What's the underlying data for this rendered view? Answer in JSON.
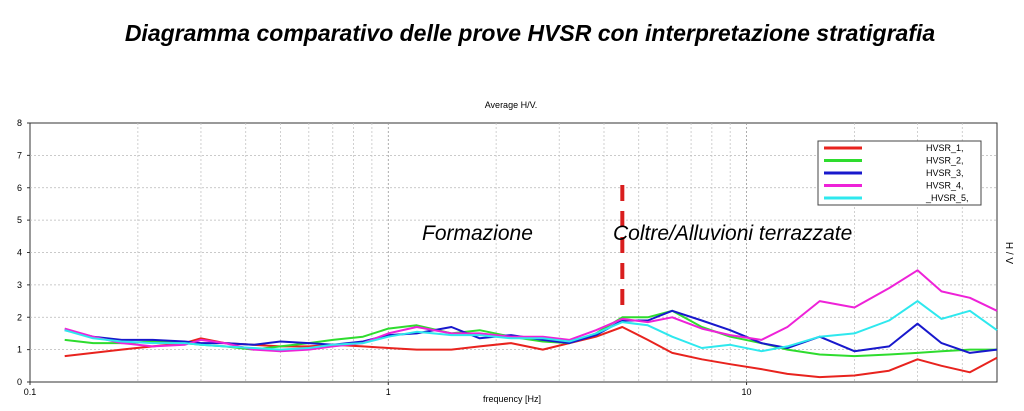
{
  "document_title": "Diagramma comparativo delle prove HVSR con interpretazione stratigrafia",
  "chart_data": {
    "type": "line",
    "title": "Average H/V.",
    "xlabel": "frequency [Hz]",
    "ylabel": "H / V",
    "xscale": "log",
    "xlim": [
      0.1,
      50
    ],
    "ylim": [
      0,
      8
    ],
    "xticks": [
      0.1,
      1,
      10
    ],
    "xtick_labels": [
      "0.1",
      "1",
      "10"
    ],
    "yticks": [
      0,
      1,
      2,
      3,
      4,
      5,
      6,
      7,
      8
    ],
    "ytick_labels": [
      "0",
      "1",
      "2",
      "3",
      "4",
      "5",
      "6",
      "7",
      "8"
    ],
    "grid": true,
    "legend_position": "top-right",
    "annotations": [
      {
        "text": "Formazione"
      },
      {
        "text": "Coltre/Alluvioni terrazzate"
      }
    ],
    "divider_frequency": 4.5,
    "divider_color": "#d91e1e",
    "x": [
      0.125,
      0.15,
      0.18,
      0.22,
      0.27,
      0.3,
      0.35,
      0.42,
      0.5,
      0.6,
      0.7,
      0.85,
      1.0,
      1.2,
      1.5,
      1.8,
      2.2,
      2.7,
      3.2,
      3.8,
      4.5,
      5.3,
      6.2,
      7.5,
      9.0,
      11,
      13,
      16,
      20,
      25,
      30,
      35,
      42,
      50
    ],
    "series": [
      {
        "name": "HVSR_1,",
        "color": "#e8231e",
        "values": [
          0.8,
          0.9,
          1.0,
          1.1,
          1.2,
          1.35,
          1.2,
          1.15,
          1.1,
          1.1,
          1.15,
          1.1,
          1.05,
          1.0,
          1.0,
          1.1,
          1.2,
          1.0,
          1.2,
          1.4,
          1.7,
          1.3,
          0.9,
          0.7,
          0.55,
          0.4,
          0.25,
          0.15,
          0.2,
          0.35,
          0.7,
          0.5,
          0.3,
          0.75
        ]
      },
      {
        "name": "HVSR_2,",
        "color": "#2edc2e",
        "values": [
          1.3,
          1.2,
          1.2,
          1.25,
          1.2,
          1.15,
          1.1,
          1.0,
          1.1,
          1.2,
          1.3,
          1.4,
          1.65,
          1.75,
          1.5,
          1.6,
          1.4,
          1.25,
          1.2,
          1.5,
          2.0,
          2.0,
          2.2,
          1.7,
          1.4,
          1.2,
          1.0,
          0.85,
          0.8,
          0.85,
          0.9,
          0.95,
          1.0,
          1.0
        ]
      },
      {
        "name": "HVSR_3,",
        "color": "#1818cc",
        "values": [
          1.6,
          1.4,
          1.3,
          1.3,
          1.25,
          1.2,
          1.2,
          1.15,
          1.25,
          1.2,
          1.15,
          1.25,
          1.45,
          1.5,
          1.7,
          1.35,
          1.45,
          1.3,
          1.2,
          1.45,
          1.9,
          1.9,
          2.2,
          1.9,
          1.6,
          1.2,
          1.05,
          1.4,
          0.95,
          1.1,
          1.8,
          1.2,
          0.9,
          1.0
        ]
      },
      {
        "name": "HVSR_4,",
        "color": "#ee22d8",
        "values": [
          1.65,
          1.4,
          1.2,
          1.1,
          1.15,
          1.3,
          1.2,
          1.0,
          0.95,
          1.0,
          1.1,
          1.2,
          1.5,
          1.7,
          1.5,
          1.5,
          1.4,
          1.4,
          1.3,
          1.6,
          1.95,
          1.85,
          2.0,
          1.65,
          1.45,
          1.3,
          1.7,
          2.5,
          2.3,
          2.9,
          3.45,
          2.8,
          2.6,
          2.2
        ]
      },
      {
        "name": "_HVSR_5,",
        "color": "#2ee8ee",
        "values": [
          1.6,
          1.35,
          1.25,
          1.2,
          1.2,
          1.15,
          1.1,
          1.05,
          1.0,
          1.05,
          1.15,
          1.2,
          1.4,
          1.55,
          1.45,
          1.45,
          1.35,
          1.35,
          1.25,
          1.5,
          1.85,
          1.75,
          1.4,
          1.05,
          1.15,
          0.95,
          1.1,
          1.4,
          1.5,
          1.9,
          2.5,
          1.95,
          2.2,
          1.6
        ]
      }
    ]
  }
}
